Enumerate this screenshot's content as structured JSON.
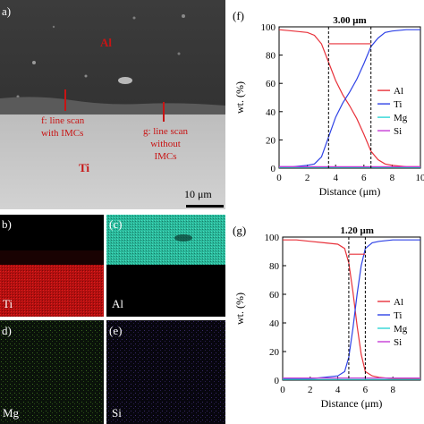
{
  "panel_a": {
    "label": "a)",
    "al": "Al",
    "ti": "Ti",
    "f_line1": "f: line scan",
    "f_line2": "with IMCs",
    "g_line1": "g: line scan",
    "g_line2": "without",
    "g_line3": "IMCs",
    "scale": "10 μm"
  },
  "maps": {
    "b": {
      "label": "b)",
      "element": "Ti"
    },
    "c": {
      "label": "(c)",
      "element": "Al"
    },
    "d": {
      "label": "d)",
      "element": "Mg"
    },
    "e": {
      "label": "(e)",
      "element": "Si"
    }
  },
  "colors": {
    "Al": "#e8313a",
    "Ti": "#2e42e6",
    "Mg": "#2fd6d6",
    "Si": "#c63ad6"
  },
  "chart_data": [
    {
      "panel": "(f)",
      "type": "line",
      "annotation": "3.00 μm",
      "marker_x": [
        3.5,
        6.5
      ],
      "xlabel": "Distance (μm)",
      "ylabel": "wt. (%)",
      "xlim": [
        0,
        10
      ],
      "ylim": [
        0,
        100
      ],
      "xticks": [
        "0",
        "2",
        "4",
        "6",
        "8",
        "10"
      ],
      "yticks": [
        "0",
        "20",
        "40",
        "60",
        "80",
        "100"
      ],
      "x": [
        0,
        1,
        2,
        2.5,
        3,
        3.5,
        4,
        4.5,
        5,
        5.5,
        6,
        6.5,
        7,
        7.5,
        8,
        9,
        10
      ],
      "series": [
        {
          "name": "Al",
          "values": [
            98,
            97,
            96,
            94,
            88,
            75,
            62,
            52,
            44,
            35,
            24,
            12,
            6,
            3,
            2,
            1,
            1
          ]
        },
        {
          "name": "Ti",
          "values": [
            1,
            1,
            2,
            3,
            8,
            22,
            36,
            46,
            54,
            63,
            74,
            86,
            92,
            96,
            97,
            98,
            98
          ]
        },
        {
          "name": "Mg",
          "values": [
            0.5,
            0.5,
            0.5,
            0.5,
            0.5,
            0.5,
            0.5,
            0.5,
            0.5,
            0.5,
            0.5,
            0.5,
            0.5,
            0.5,
            0.5,
            0.5,
            0.5
          ]
        },
        {
          "name": "Si",
          "values": [
            1,
            1,
            1,
            1,
            1,
            1,
            1,
            1,
            1,
            1,
            1,
            1,
            1,
            1,
            1,
            1,
            1
          ]
        }
      ],
      "legend": "right"
    },
    {
      "panel": "(g)",
      "type": "line",
      "annotation": "1.20 μm",
      "marker_x": [
        4.8,
        6.0
      ],
      "xlabel": "Distance (μm)",
      "ylabel": "wt. (%)",
      "xlim": [
        0,
        10
      ],
      "ylim": [
        0,
        100
      ],
      "xticks": [
        "0",
        "2",
        "4",
        "6",
        "8"
      ],
      "yticks": [
        "0",
        "20",
        "40",
        "60",
        "80",
        "100"
      ],
      "x": [
        0,
        1,
        2,
        3,
        4,
        4.5,
        4.8,
        5.1,
        5.4,
        5.7,
        6,
        6.5,
        7,
        8,
        9,
        10
      ],
      "series": [
        {
          "name": "Al",
          "values": [
            98,
            98,
            97,
            96,
            95,
            92,
            82,
            62,
            38,
            18,
            6,
            3,
            2,
            1,
            1,
            1
          ]
        },
        {
          "name": "Ti",
          "values": [
            1,
            1,
            1,
            2,
            3,
            6,
            16,
            36,
            60,
            80,
            92,
            96,
            97,
            98,
            98,
            98
          ]
        },
        {
          "name": "Mg",
          "values": [
            0.5,
            0.5,
            0.5,
            0.5,
            0.5,
            0.5,
            0.5,
            0.5,
            0.5,
            0.5,
            0.5,
            0.5,
            0.5,
            0.5,
            0.5,
            0.5
          ]
        },
        {
          "name": "Si",
          "values": [
            1.5,
            1.5,
            1.5,
            1.5,
            1.5,
            1.5,
            1.5,
            1.5,
            1.5,
            1.5,
            1.5,
            1.5,
            1.5,
            1.5,
            1.5,
            1.5
          ]
        }
      ],
      "legend": "right"
    }
  ]
}
